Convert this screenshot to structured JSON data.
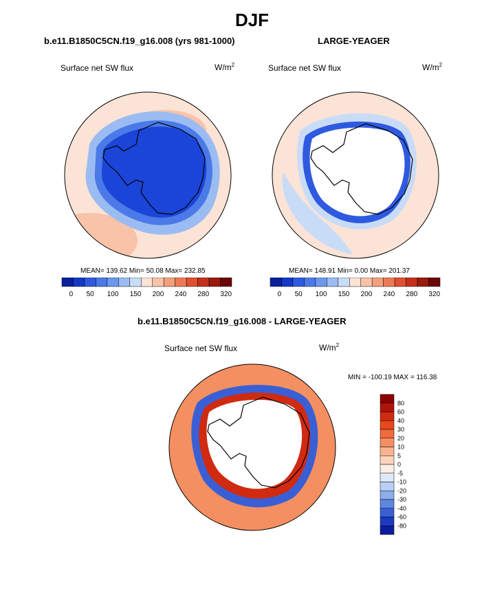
{
  "figure": {
    "title": "DJF",
    "panels": [
      {
        "title": "b.e11.B1850C5CN.f19_g16.008 (yrs 981-1000)",
        "left_label": "Surface net SW flux",
        "units_base": "W/m",
        "units_exp": "2",
        "stats": "MEAN= 139.62  Min=  50.08  Max= 232.85"
      },
      {
        "title": "LARGE-YEAGER",
        "left_label": "Surface net SW flux",
        "units_base": "W/m",
        "units_exp": "2",
        "stats": "MEAN= 148.91  Min=   0.00  Max= 201.37"
      },
      {
        "title": "b.e11.B1850C5CN.f19_g16.008 - LARGE-YEAGER",
        "left_label": "Surface net SW flux",
        "units_base": "W/m",
        "units_exp": "2",
        "stats": "MIN = -100.19 MAX = 116.38"
      }
    ]
  },
  "chart_data": [
    {
      "type": "heatmap",
      "projection": "south-polar-stereographic",
      "title": "b.e11.B1850C5CN.f19_g16.008 (yrs 981-1000)",
      "variable": "Surface net SW flux",
      "units": "W/m2",
      "stats": {
        "mean": 139.62,
        "min": 50.08,
        "max": 232.85
      },
      "colorbar": {
        "orientation": "horizontal",
        "tick_labels": [
          "0",
          "50",
          "100",
          "150",
          "200",
          "240",
          "280",
          "320"
        ],
        "colors": [
          "#0a1f9c",
          "#1438c8",
          "#2f5ae0",
          "#4b7ae8",
          "#6d98ee",
          "#9bbcf3",
          "#c9dcf7",
          "#fbe3d6",
          "#f8c3a8",
          "#f4a07e",
          "#ee7a55",
          "#e0502f",
          "#c5301a",
          "#9a1a0c",
          "#6b0505"
        ]
      },
      "regions": [
        {
          "area": "antarctic-continent",
          "color": "#1a45d8"
        },
        {
          "area": "coastal-band",
          "color": "#4b7ae8"
        },
        {
          "area": "sea-ice-zone",
          "color": "#9bbcf3"
        },
        {
          "area": "open-ocean",
          "color": "#fbe3d6"
        },
        {
          "area": "open-ocean-north",
          "color": "#f8c3a8"
        }
      ]
    },
    {
      "type": "heatmap",
      "projection": "south-polar-stereographic",
      "title": "LARGE-YEAGER",
      "variable": "Surface net SW flux",
      "units": "W/m2",
      "stats": {
        "mean": 148.91,
        "min": 0.0,
        "max": 201.37
      },
      "colorbar": {
        "orientation": "horizontal",
        "tick_labels": [
          "0",
          "50",
          "100",
          "150",
          "200",
          "240",
          "280",
          "320"
        ],
        "colors": [
          "#0a1f9c",
          "#1438c8",
          "#2f5ae0",
          "#4b7ae8",
          "#6d98ee",
          "#9bbcf3",
          "#c9dcf7",
          "#fbe3d6",
          "#f8c3a8",
          "#f4a07e",
          "#ee7a55",
          "#e0502f",
          "#c5301a",
          "#9a1a0c",
          "#6b0505"
        ]
      },
      "regions": [
        {
          "area": "antarctic-continent",
          "color": "#ffffff"
        },
        {
          "area": "coastal-band",
          "color": "#2f5ae0"
        },
        {
          "area": "sea-ice-zone",
          "color": "#c9dcf7"
        },
        {
          "area": "open-ocean",
          "color": "#fbe3d6"
        }
      ]
    },
    {
      "type": "heatmap",
      "projection": "south-polar-stereographic",
      "title": "b.e11.B1850C5CN.f19_g16.008 - LARGE-YEAGER",
      "variable": "Surface net SW flux",
      "units": "W/m2",
      "stats": {
        "min": -100.19,
        "max": 116.38
      },
      "colorbar": {
        "orientation": "vertical",
        "tick_labels": [
          "80",
          "60",
          "40",
          "30",
          "20",
          "10",
          "5",
          "0",
          "-5",
          "-10",
          "-20",
          "-30",
          "-40",
          "-60",
          "-80"
        ],
        "colors": [
          "#8b0000",
          "#b01408",
          "#d02a10",
          "#e8481c",
          "#f06a3c",
          "#f48f62",
          "#f8b48f",
          "#fbd3bd",
          "#fdeee4",
          "#dde9f8",
          "#b8cff2",
          "#8caeea",
          "#5f86e0",
          "#3a5fd4",
          "#1d3ac0",
          "#0c1d9c"
        ]
      },
      "regions": [
        {
          "area": "antarctic-continent",
          "color": "#ffffff"
        },
        {
          "area": "coastal-positive-band",
          "color": "#d02a10"
        },
        {
          "area": "sea-ice-edge-negative",
          "color": "#3a5fd4"
        },
        {
          "area": "open-ocean",
          "color": "#f48f62"
        }
      ]
    }
  ]
}
